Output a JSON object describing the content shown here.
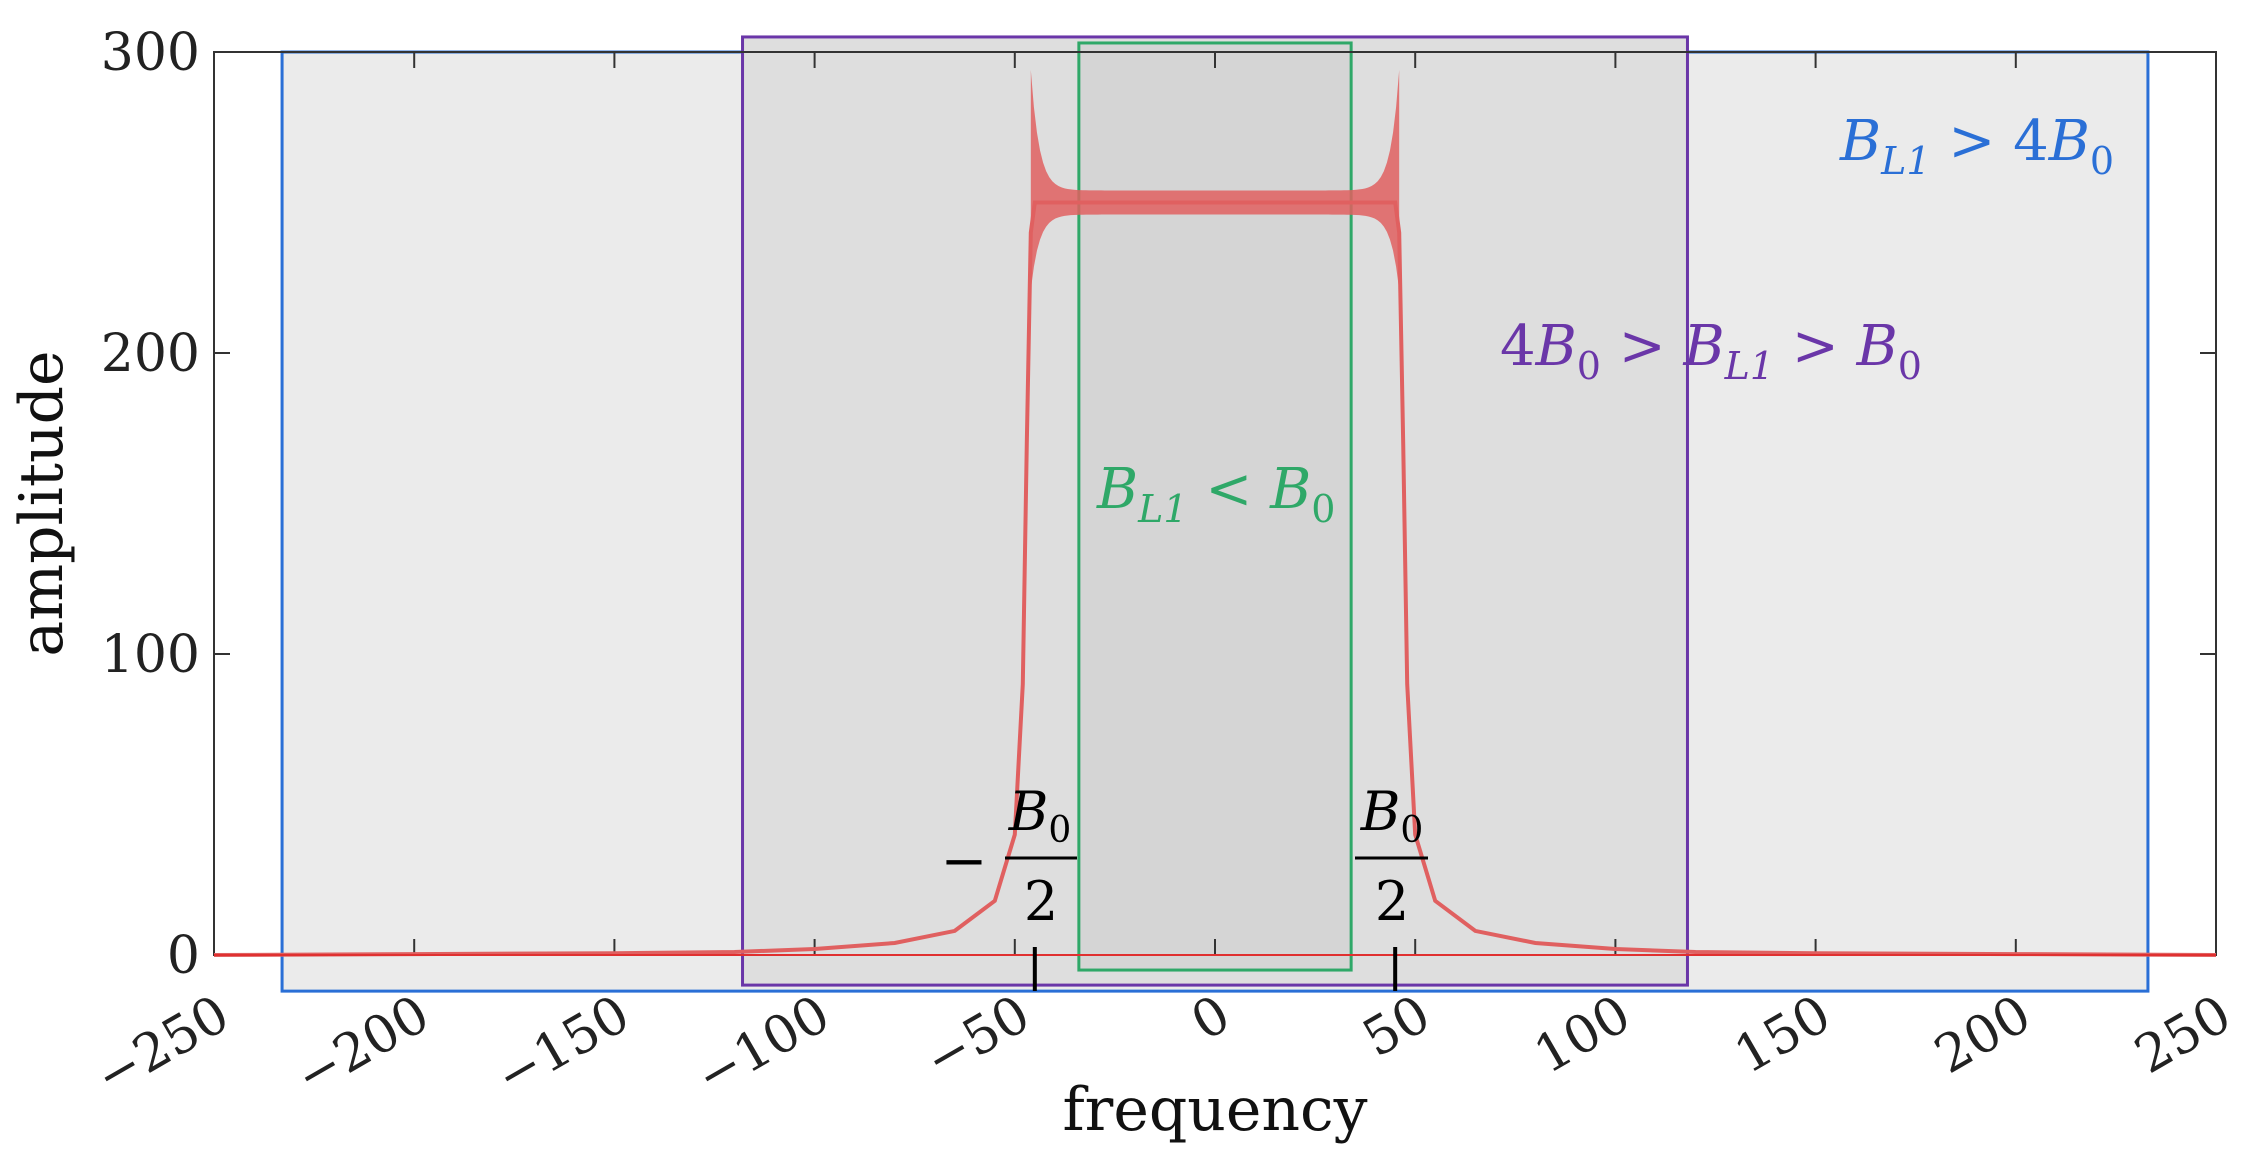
{
  "chart_data": {
    "type": "line",
    "xlabel": "frequency",
    "ylabel": "amplitude",
    "xlim": [
      -250,
      250
    ],
    "ylim": [
      0,
      300
    ],
    "x_ticks": [
      -250,
      -200,
      -150,
      -100,
      -50,
      0,
      50,
      100,
      150,
      200,
      250
    ],
    "x_tick_labels": [
      "−250",
      "−200",
      "−150",
      "−100",
      "−50",
      "0",
      "50",
      "100",
      "150",
      "200",
      "250"
    ],
    "y_ticks": [
      0,
      100,
      200,
      300
    ],
    "y_tick_labels": [
      "0",
      "100",
      "200",
      "300"
    ],
    "grid": false,
    "series": [
      {
        "color": "#e06060",
        "x": [
          -250,
          -200,
          -150,
          -120,
          -100,
          -80,
          -65,
          -55,
          -50,
          -48,
          -47,
          -46,
          -45,
          45,
          46,
          47,
          48,
          50,
          55,
          65,
          80,
          100,
          120,
          150,
          200,
          250
        ],
        "y": [
          0,
          0.3,
          0.6,
          1,
          2,
          4,
          8,
          18,
          40,
          90,
          170,
          240,
          250,
          250,
          240,
          170,
          90,
          40,
          18,
          8,
          4,
          2,
          1,
          0.6,
          0.3,
          0
        ],
        "ripple_band": {
          "x_range": [
            -46,
            46
          ],
          "center": 250,
          "edge_max": 294,
          "edge_min": 221,
          "mid_halfwidth": 4
        }
      }
    ],
    "regions": [
      {
        "name": "B_L1 > 4B_0",
        "x_range": [
          -233,
          233
        ],
        "y_range": [
          -12,
          300
        ],
        "color": "#2a6fd6",
        "fill": "#ebebeb"
      },
      {
        "name": "4B_0 > B_L1 > B_0",
        "x_range": [
          -118,
          118
        ],
        "y_range": [
          -10,
          305
        ],
        "color": "#6a36a8",
        "fill": "#dedede"
      },
      {
        "name": "B_L1 < B_0",
        "x_range": [
          -34,
          34
        ],
        "y_range": [
          -5,
          303
        ],
        "color": "#2fa868",
        "fill": "#d5d5d5"
      }
    ],
    "markers": [
      {
        "x": -45
      },
      {
        "x": 45
      }
    ],
    "annotations": {
      "blue": {
        "B": "B",
        "sub1": "L1",
        "op": " > 4",
        "B2": "B",
        "sub2": "0",
        "color": "#2a6fd6"
      },
      "purple": {
        "pre": "4",
        "B": "B",
        "sub": "0",
        "op1": " > ",
        "B2": "B",
        "sub2": "L1",
        "op2": " > ",
        "B3": "B",
        "sub3": "0",
        "color": "#6a36a8"
      },
      "green": {
        "B": "B",
        "sub1": "L1",
        "op": " < ",
        "B2": "B",
        "sub2": "0",
        "color": "#2fa868"
      },
      "neg_half": {
        "minus": "−",
        "num": "B",
        "num_sub": "0",
        "den": "2"
      },
      "pos_half": {
        "num": "B",
        "num_sub": "0",
        "den": "2"
      }
    }
  }
}
